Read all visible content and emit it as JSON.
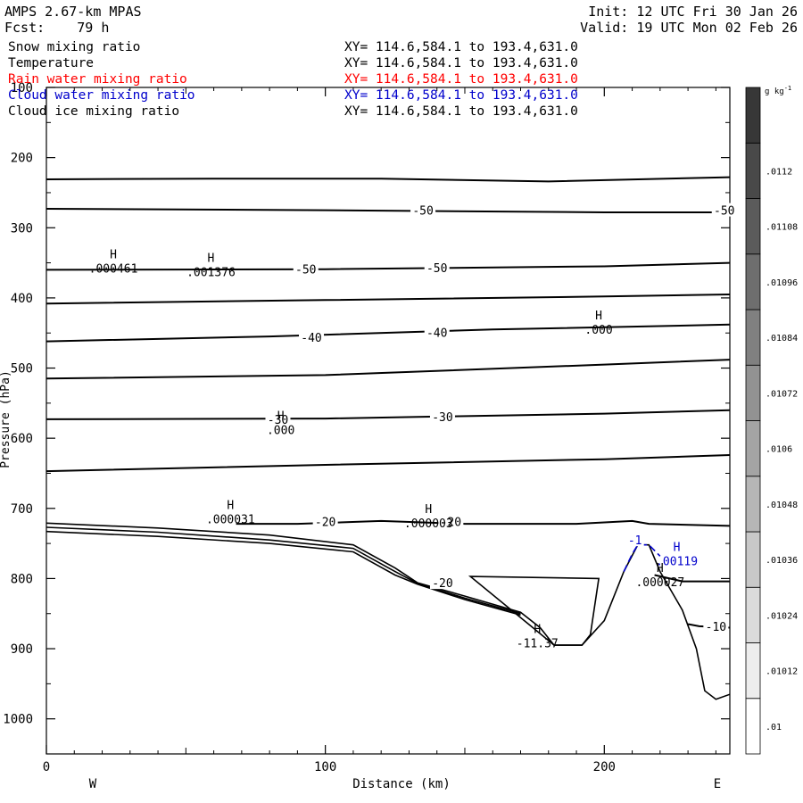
{
  "header": {
    "model": "AMPS 2.67-km MPAS",
    "init": "Init: 12 UTC Fri 30 Jan 26",
    "fcst": "Fcst:    79 h",
    "valid": "Valid: 19 UTC Mon 02 Feb 26"
  },
  "fields": [
    {
      "name": "Snow mixing ratio",
      "xy": "XY= 114.6,584.1 to 193.4,631.0",
      "color": "#000000"
    },
    {
      "name": "Temperature",
      "xy": "XY= 114.6,584.1 to 193.4,631.0",
      "color": "#000000"
    },
    {
      "name": "Rain water mixing ratio",
      "xy": "XY= 114.6,584.1 to 193.4,631.0",
      "color": "#ff0000"
    },
    {
      "name": "Cloud water mixing ratio",
      "xy": "XY= 114.6,584.1 to 193.4,631.0",
      "color": "#0000cc"
    },
    {
      "name": "Cloud ice mixing ratio",
      "xy": "XY= 114.6,584.1 to 193.4,631.0",
      "color": "#000000"
    }
  ],
  "chart_data": {
    "type": "contour-cross-section",
    "xlabel": "Distance (km)",
    "ylabel": "Pressure (hPa)",
    "xlim": [
      0,
      245
    ],
    "ylim": [
      1050,
      100
    ],
    "x_ticks": [
      0,
      100,
      200
    ],
    "y_ticks": [
      100,
      200,
      300,
      400,
      500,
      600,
      700,
      800,
      900,
      1000
    ],
    "left_end_label": "W",
    "right_end_label": "E",
    "colorbar": {
      "unit": "g kg-1",
      "levels": [
        ".01",
        ".01012",
        ".01024",
        ".01036",
        ".01048",
        ".0106",
        ".01072",
        ".01084",
        ".01096",
        ".01108",
        ".0112"
      ]
    },
    "isotherms": [
      {
        "points": [
          [
            0,
            231
          ],
          [
            60,
            230
          ],
          [
            120,
            230
          ],
          [
            180,
            234
          ],
          [
            245,
            228
          ]
        ]
      },
      {
        "points": [
          [
            0,
            273
          ],
          [
            100,
            275
          ],
          [
            200,
            278
          ],
          [
            245,
            278
          ]
        ]
      },
      {
        "points": [
          [
            0,
            360
          ],
          [
            100,
            359
          ],
          [
            200,
            355
          ],
          [
            245,
            350
          ]
        ]
      },
      {
        "points": [
          [
            0,
            408
          ],
          [
            100,
            403
          ],
          [
            200,
            398
          ],
          [
            245,
            395
          ]
        ]
      },
      {
        "points": [
          [
            0,
            462
          ],
          [
            80,
            455
          ],
          [
            160,
            445
          ],
          [
            245,
            438
          ]
        ]
      },
      {
        "points": [
          [
            0,
            515
          ],
          [
            100,
            510
          ],
          [
            200,
            495
          ],
          [
            245,
            488
          ]
        ]
      },
      {
        "points": [
          [
            0,
            573
          ],
          [
            100,
            572
          ],
          [
            200,
            565
          ],
          [
            245,
            560
          ]
        ]
      },
      {
        "points": [
          [
            0,
            647
          ],
          [
            100,
            638
          ],
          [
            200,
            630
          ],
          [
            245,
            624
          ]
        ]
      },
      {
        "points": [
          [
            68,
            722
          ],
          [
            90,
            722
          ],
          [
            120,
            718
          ],
          [
            150,
            722
          ],
          [
            190,
            722
          ],
          [
            210,
            718
          ],
          [
            216,
            722
          ],
          [
            245,
            725
          ]
        ]
      },
      {
        "points": [
          [
            218,
            795
          ],
          [
            228,
            804
          ],
          [
            245,
            804
          ]
        ]
      },
      {
        "points": [
          [
            230,
            865
          ],
          [
            234,
            868
          ],
          [
            245,
            870
          ]
        ]
      }
    ],
    "terrain_lines": [
      {
        "points": [
          [
            0,
            721
          ],
          [
            40,
            728
          ],
          [
            80,
            738
          ],
          [
            110,
            752
          ],
          [
            125,
            785
          ],
          [
            133,
            806
          ],
          [
            150,
            825
          ],
          [
            170,
            848
          ],
          [
            177,
            870
          ],
          [
            182,
            895
          ],
          [
            192,
            895
          ],
          [
            200,
            860
          ],
          [
            207,
            790
          ],
          [
            212,
            752
          ],
          [
            216,
            752
          ],
          [
            220,
            790
          ],
          [
            228,
            845
          ],
          [
            233,
            900
          ],
          [
            236,
            960
          ],
          [
            240,
            972
          ],
          [
            245,
            965
          ]
        ]
      },
      {
        "points": [
          [
            0,
            727
          ],
          [
            40,
            734
          ],
          [
            80,
            745
          ],
          [
            110,
            757
          ],
          [
            125,
            790
          ],
          [
            133,
            807
          ],
          [
            150,
            828
          ],
          [
            170,
            850
          ]
        ]
      },
      {
        "points": [
          [
            0,
            733
          ],
          [
            40,
            740
          ],
          [
            80,
            750
          ],
          [
            110,
            762
          ],
          [
            125,
            795
          ],
          [
            133,
            808
          ],
          [
            150,
            830
          ],
          [
            170,
            852
          ]
        ]
      }
    ],
    "cold_loop": [
      [
        152,
        797
      ],
      [
        198,
        800
      ],
      [
        195,
        880
      ],
      [
        192,
        895
      ],
      [
        182,
        895
      ],
      [
        175,
        872
      ],
      [
        152,
        797
      ]
    ],
    "cloud_water_contour": [
      [
        207,
        790
      ],
      [
        210,
        765
      ],
      [
        212,
        752
      ],
      [
        216,
        752
      ],
      [
        220,
        768
      ]
    ],
    "contour_labels": [
      {
        "x": 135,
        "y": 275,
        "text": "-50"
      },
      {
        "x": 243,
        "y": 275,
        "text": "-50"
      },
      {
        "x": 93,
        "y": 359,
        "text": "-50"
      },
      {
        "x": 140,
        "y": 357,
        "text": "-50"
      },
      {
        "x": 95,
        "y": 456,
        "text": "-40"
      },
      {
        "x": 140,
        "y": 449,
        "text": "-40"
      },
      {
        "x": 83,
        "y": 573,
        "text": "-30"
      },
      {
        "x": 142,
        "y": 569,
        "text": "-30"
      },
      {
        "x": 100,
        "y": 719,
        "text": "-20"
      },
      {
        "x": 145,
        "y": 719,
        "text": "-20"
      },
      {
        "x": 142,
        "y": 806,
        "text": "-20"
      },
      {
        "x": 240,
        "y": 868,
        "text": "-10"
      },
      {
        "x": 211,
        "y": 745,
        "text": "-1",
        "color": "#0000cc"
      }
    ],
    "maxima": [
      {
        "x": 24,
        "y": 350,
        "label": "H",
        "value": ".000461",
        "color": "#000000"
      },
      {
        "x": 59,
        "y": 355,
        "label": "H",
        "value": ".001376",
        "color": "#000000"
      },
      {
        "x": 198,
        "y": 437,
        "label": "H",
        "value": ".000",
        "color": "#000000"
      },
      {
        "x": 84,
        "y": 580,
        "label": "H",
        "value": ".000",
        "color": "#000000"
      },
      {
        "x": 66,
        "y": 707,
        "label": "H",
        "value": ".000031",
        "color": "#000000"
      },
      {
        "x": 137,
        "y": 713,
        "label": "H",
        "value": ".000003",
        "color": "#000000"
      },
      {
        "x": 176,
        "y": 884,
        "label": "H",
        "value": "-11.37",
        "color": "#000000"
      },
      {
        "x": 220,
        "y": 797,
        "label": "H",
        "value": ".000027",
        "color": "#000000"
      },
      {
        "x": 226,
        "y": 767,
        "label": "H",
        "value": ".00119",
        "color": "#0000cc"
      }
    ]
  }
}
